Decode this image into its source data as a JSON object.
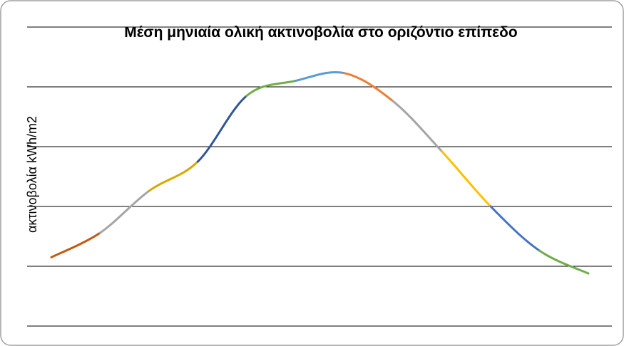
{
  "chart_data": {
    "type": "line",
    "title": "Μέση μηνιαία ολική ακτινοβολία στο οριζόντιο επίπεδο",
    "y_label": "ακτινοβολία kWh/m2",
    "categories": [
      null,
      null,
      null,
      null,
      null,
      null,
      null,
      null,
      null,
      null,
      null,
      null
    ],
    "values": [
      1.15,
      1.56,
      2.26,
      2.75,
      3.85,
      4.1,
      4.23,
      3.76,
      2.92,
      2.0,
      1.26,
      0.88
    ],
    "segment_colors": [
      "#c55a11",
      "#a5a5a5",
      "#d9a800",
      "#2f5597",
      "#70ad47",
      "#5b9bd5",
      "#ed7d31",
      "#a5a5a5",
      "#ffc000",
      "#4472c4",
      "#70ad47"
    ],
    "ylim": [
      0,
      5
    ],
    "yticks": [
      0,
      1,
      2,
      3,
      4,
      5
    ],
    "grid": true
  }
}
